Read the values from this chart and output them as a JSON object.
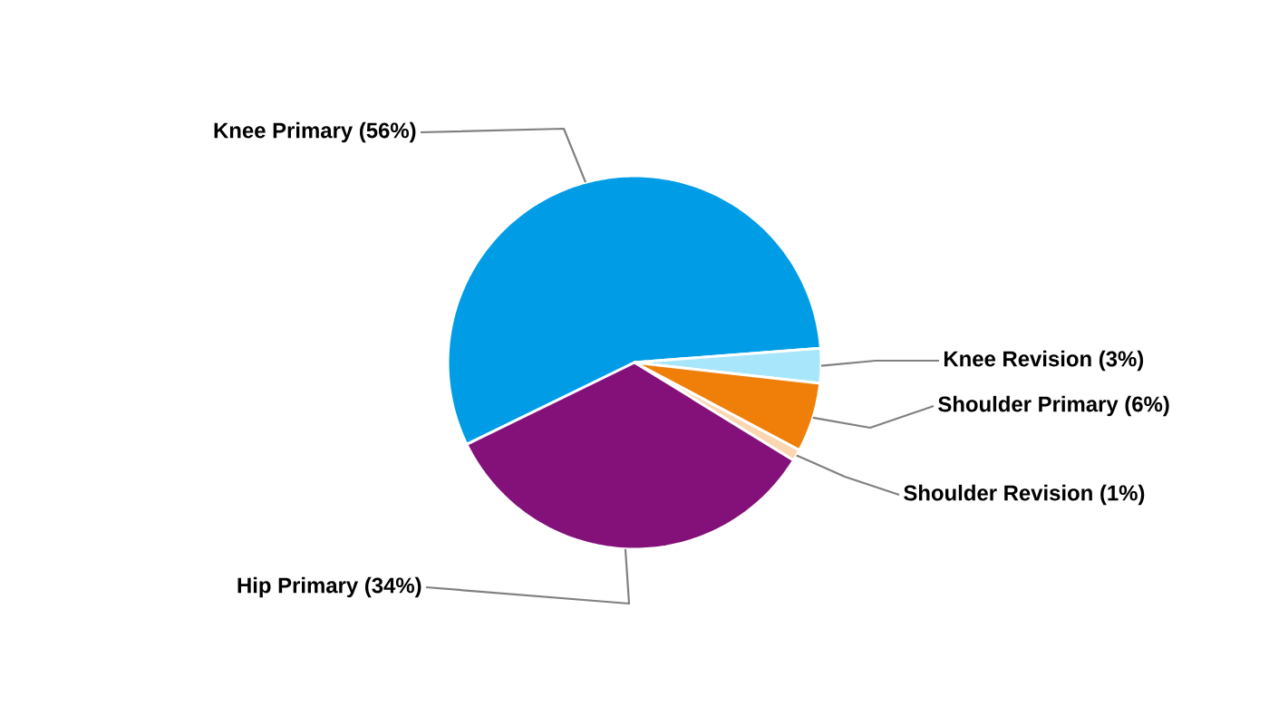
{
  "chart_data": {
    "type": "pie",
    "categories": [
      "Knee Primary (56%)",
      "Knee Revision (3%)",
      "Shoulder Primary (6%)",
      "Shoulder Revision (1%)",
      "Hip Primary (34%)"
    ],
    "values": [
      56,
      3,
      6,
      1,
      34
    ],
    "colors": [
      "#009de6",
      "#a8e6fb",
      "#f07f09",
      "#fbd6b0",
      "#84117a"
    ]
  }
}
